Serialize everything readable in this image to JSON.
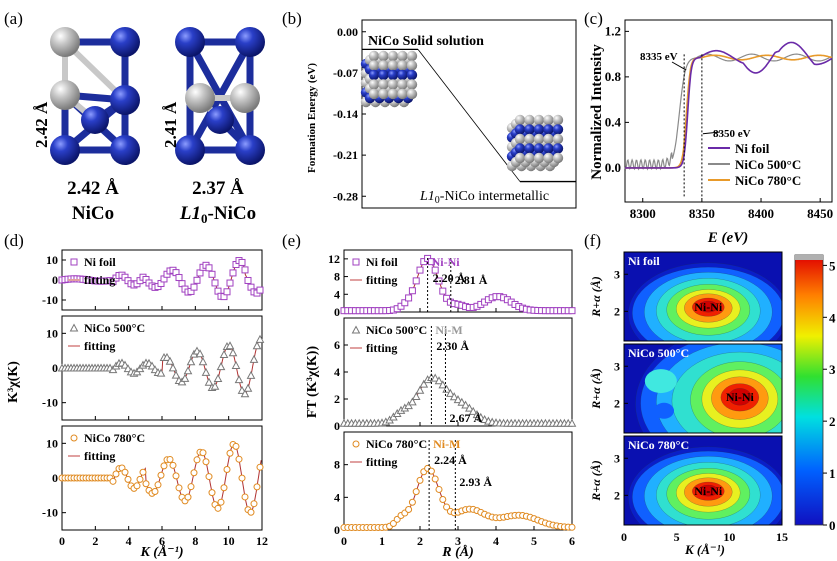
{
  "panel_labels": [
    "(a)",
    "(b)",
    "(c)",
    "(d)",
    "(e)",
    "(f)"
  ],
  "panel_a": {
    "left": {
      "vert_dist": "2.42 Å",
      "horiz_dist": "2.42 Å",
      "name": "NiCo"
    },
    "right": {
      "vert_dist": "2.41 Å",
      "horiz_dist": "2.37 Å",
      "name_main": "L1",
      "name_sub": "0",
      "name_tail": "-NiCo"
    },
    "colors": {
      "ni": "#1c2d9c",
      "co": "#b0b0b0"
    }
  },
  "chart_data": [
    {
      "id": "b",
      "type": "line",
      "ylabel": "Formation Energy (eV)",
      "ylim": [
        -0.3,
        0.02
      ],
      "yticks": [
        "0.00",
        "-0.07",
        "-0.14",
        "-0.21",
        "-0.28"
      ],
      "yticks_val": [
        0.0,
        -0.07,
        -0.14,
        -0.21,
        -0.28
      ],
      "levels": [
        {
          "label": "NiCo Solid solution",
          "value": -0.03
        },
        {
          "label_main": "L1",
          "label_sub": "0",
          "label_tail": "-NiCo intermetallic",
          "value": -0.255
        }
      ]
    },
    {
      "id": "c",
      "type": "line",
      "xlabel": "E (eV)",
      "ylabel": "Normalized Intensity",
      "xlim": [
        8285,
        8460
      ],
      "ylim": [
        -0.3,
        1.3
      ],
      "xticks": [
        "8300",
        "8350",
        "8400",
        "8450"
      ],
      "xticks_val": [
        8300,
        8350,
        8400,
        8450
      ],
      "yticks": [
        "0.0",
        "0.4",
        "0.8",
        "1.2"
      ],
      "yticks_val": [
        0.0,
        0.4,
        0.8,
        1.2
      ],
      "annotations": [
        "8335 eV",
        "8350 eV"
      ],
      "legend": [
        "Ni foil",
        "NiCo 500°C",
        "NiCo 780°C"
      ],
      "colors": [
        "#6a2aa8",
        "#8a8a8a",
        "#e89a2a"
      ]
    },
    {
      "id": "d",
      "type": "line",
      "xlabel": "K (Å⁻¹)",
      "ylabel": "K³χ(K)",
      "xlim": [
        0,
        12
      ],
      "ylim": [
        -15,
        15
      ],
      "xticks": [
        "0",
        "2",
        "4",
        "6",
        "8",
        "10",
        "12"
      ],
      "xticks_val": [
        0,
        2,
        4,
        6,
        8,
        10,
        12
      ],
      "yticks": [
        "10",
        "0",
        "-10"
      ],
      "yticks_val": [
        10,
        0,
        -10
      ],
      "series": [
        {
          "name": "Ni foil",
          "fit": "fitting",
          "color": "#a040c0",
          "marker": "square"
        },
        {
          "name": "NiCo 500°C",
          "fit": "fitting",
          "color": "#777777",
          "marker": "triangle"
        },
        {
          "name": "NiCo 780°C",
          "fit": "fitting",
          "color": "#e08a20",
          "marker": "circle"
        }
      ]
    },
    {
      "id": "e",
      "type": "line",
      "xlabel": "R (Å)",
      "ylabel": "FT (K³χ(K))",
      "xlim": [
        0,
        6
      ],
      "xticks": [
        "0",
        "1",
        "2",
        "3",
        "4",
        "5",
        "6"
      ],
      "xticks_val": [
        0,
        1,
        2,
        3,
        4,
        5,
        6
      ],
      "panels": [
        {
          "name": "Ni foil",
          "fit": "fitting",
          "color": "#a040c0",
          "marker": "square",
          "ylim": [
            0,
            14
          ],
          "yticks": [
            "0",
            "4",
            "8",
            "12"
          ],
          "yticks_val": [
            0,
            4,
            8,
            12
          ],
          "peak_label": "Ni-Ni",
          "peak_label_color": "#a040c0",
          "ann1": "2.20 Å",
          "ann2": "2.81 Å"
        },
        {
          "name": "NiCo 500°C",
          "fit": "fitting",
          "color": "#777777",
          "marker": "triangle",
          "ylim": [
            0,
            8
          ],
          "yticks": [
            "0",
            "2",
            "4",
            "6"
          ],
          "yticks_val": [
            0,
            2,
            4,
            6
          ],
          "peak_label": "Ni-M",
          "peak_label_color": "#999999",
          "ann1": "2.30 Å",
          "ann2": "2.67 Å"
        },
        {
          "name": "NiCo 780°C",
          "fit": "fitting",
          "color": "#e08a20",
          "marker": "circle",
          "ylim": [
            0,
            12
          ],
          "yticks": [
            "0",
            "4",
            "8"
          ],
          "yticks_val": [
            0,
            4,
            8
          ],
          "peak_label": "Ni-M",
          "peak_label_color": "#e08a20",
          "ann1": "2.24 Å",
          "ann2": "2.93 Å"
        }
      ]
    },
    {
      "id": "f",
      "type": "heatmap",
      "xlabel": "K (Å⁻¹)",
      "ylabel": "R+α (Å)",
      "xlim": [
        0,
        15
      ],
      "ylim": [
        1.2,
        3.6
      ],
      "xticks": [
        "0",
        "5",
        "10",
        "15"
      ],
      "xticks_val": [
        0,
        5,
        10,
        15
      ],
      "yticks": [
        "2",
        "3"
      ],
      "yticks_val": [
        2,
        3
      ],
      "panels": [
        {
          "name": "Ni foil",
          "label": "Ni-Ni",
          "cx": 8.0,
          "cy": 2.15
        },
        {
          "name": "NiCo 500°C",
          "label": "Ni-Ni",
          "cx": 11.0,
          "cy": 2.2
        },
        {
          "name": "NiCo 780°C",
          "label": "Ni-Ni",
          "cx": 8.0,
          "cy": 2.15
        }
      ],
      "colorbar_ticks": [
        "0",
        "1",
        "2",
        "3",
        "4",
        "5"
      ],
      "colorbar_ticks_val": [
        0,
        1,
        2,
        3,
        4,
        5
      ]
    }
  ]
}
